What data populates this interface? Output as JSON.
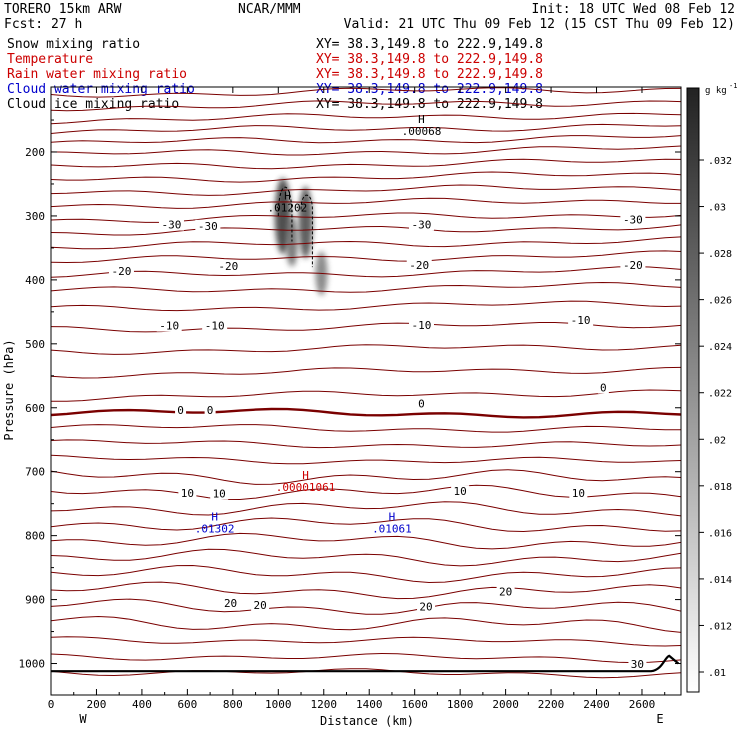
{
  "header": {
    "line1_left": "TORERO  15km ARW",
    "line1_mid": "NCAR/MMM",
    "line1_right": "Init: 18 UTC Wed 08 Feb 12",
    "line2_left": "Fcst:   27 h",
    "line2_right": "Valid: 21 UTC Thu 09 Feb 12 (15 CST Thu 09 Feb 12)"
  },
  "fields": [
    {
      "label": "Snow mixing ratio",
      "color": "#000000",
      "xy": "XY=  38.3,149.8 to 222.9,149.8",
      "xy_color": "#000000"
    },
    {
      "label": "Temperature",
      "color": "#cc0000",
      "xy": "XY=  38.3,149.8 to 222.9,149.8",
      "xy_color": "#cc0000"
    },
    {
      "label": "Rain water mixing ratio",
      "color": "#cc0000",
      "xy": "XY=  38.3,149.8 to 222.9,149.8",
      "xy_color": "#cc0000"
    },
    {
      "label": "Cloud water mixing ratio",
      "color": "#0000cc",
      "xy": "XY=  38.3,149.8 to 222.9,149.8",
      "xy_color": "#0000cc"
    },
    {
      "label": "Cloud ice mixing ratio",
      "color": "#000000",
      "xy": "XY=  38.3,149.8 to 222.9,149.8",
      "xy_color": "#000000"
    }
  ],
  "chart_data": {
    "type": "contour-cross-section",
    "xlabel": "Distance (km)",
    "ylabel": "Pressure (hPa)",
    "x_ticks": [
      0,
      200,
      400,
      600,
      800,
      1000,
      1200,
      1400,
      1600,
      1800,
      2000,
      2200,
      2400,
      2600
    ],
    "y_ticks": [
      200,
      300,
      400,
      500,
      600,
      700,
      800,
      900,
      1000
    ],
    "xlim": [
      0,
      2760
    ],
    "ylim": [
      1047,
      100
    ],
    "left_end": "W",
    "right_end": "E",
    "colorbar": {
      "unit": "g kg",
      "unit_exp": "-1",
      "ticks": [
        ".032",
        ".03",
        ".028",
        ".026",
        ".024",
        ".022",
        ".02",
        ".018",
        ".016",
        ".014",
        ".012",
        ".01"
      ]
    },
    "temperature_labels": [
      {
        "text": "-30",
        "x": 530,
        "p": 315
      },
      {
        "text": "-30",
        "x": 690,
        "p": 317
      },
      {
        "text": "-30",
        "x": 1630,
        "p": 315
      },
      {
        "text": "-30",
        "x": 2560,
        "p": 307
      },
      {
        "text": "-20",
        "x": 310,
        "p": 388
      },
      {
        "text": "-20",
        "x": 780,
        "p": 380
      },
      {
        "text": "-20",
        "x": 1620,
        "p": 378
      },
      {
        "text": "-20",
        "x": 2560,
        "p": 378
      },
      {
        "text": "-10",
        "x": 520,
        "p": 473
      },
      {
        "text": "-10",
        "x": 720,
        "p": 473
      },
      {
        "text": "-10",
        "x": 1630,
        "p": 472
      },
      {
        "text": "-10",
        "x": 2330,
        "p": 464
      },
      {
        "text": "0",
        "x": 570,
        "p": 605
      },
      {
        "text": "0",
        "x": 700,
        "p": 605
      },
      {
        "text": "0",
        "x": 1630,
        "p": 595
      },
      {
        "text": "0",
        "x": 2430,
        "p": 570
      },
      {
        "text": "10",
        "x": 600,
        "p": 735
      },
      {
        "text": "10",
        "x": 740,
        "p": 736
      },
      {
        "text": "10",
        "x": 1800,
        "p": 732
      },
      {
        "text": "10",
        "x": 2320,
        "p": 735
      },
      {
        "text": "20",
        "x": 790,
        "p": 907
      },
      {
        "text": "20",
        "x": 920,
        "p": 910
      },
      {
        "text": "20",
        "x": 1650,
        "p": 912
      },
      {
        "text": "20",
        "x": 2000,
        "p": 889
      },
      {
        "text": "30",
        "x": 2580,
        "p": 1002
      }
    ],
    "extrema_labels": [
      {
        "mark": "H",
        "value": ".00068",
        "x": 1630,
        "p": 170,
        "color": "#000000"
      },
      {
        "mark": "H",
        "value": ".01202",
        "x": 1040,
        "p": 290,
        "color": "#000000"
      },
      {
        "mark": "H",
        "value": ".00001061",
        "x": 1120,
        "p": 727,
        "color": "#cc0000"
      },
      {
        "mark": "H",
        "value": ".01302",
        "x": 720,
        "p": 792,
        "color": "#0000cc"
      },
      {
        "mark": "H",
        "value": ".01061",
        "x": 1500,
        "p": 792,
        "color": "#0000cc"
      }
    ]
  }
}
